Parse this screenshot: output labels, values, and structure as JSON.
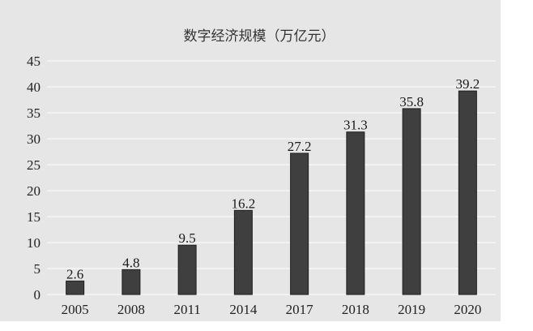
{
  "chart_data": {
    "type": "bar",
    "title": "数字经济规模（万亿元）",
    "categories": [
      "2005",
      "2008",
      "2011",
      "2014",
      "2017",
      "2018",
      "2019",
      "2020"
    ],
    "values": [
      2.6,
      4.8,
      9.5,
      16.2,
      27.2,
      31.3,
      35.8,
      39.2
    ],
    "data_labels": [
      "2.6",
      "4.8",
      "9.5",
      "16.2",
      "27.2",
      "31.3",
      "35.8",
      "39.2"
    ],
    "y_ticks": [
      "0",
      "5",
      "10",
      "15",
      "20",
      "25",
      "30",
      "35",
      "40",
      "45"
    ],
    "ylim": [
      0,
      45
    ],
    "grid": true,
    "legend": "none",
    "colors": {
      "plot_background": "#e6e6e6",
      "bar": "#3f3f3f",
      "bar_edge": "#1f1f1f",
      "gridline": "#ffffff"
    }
  }
}
